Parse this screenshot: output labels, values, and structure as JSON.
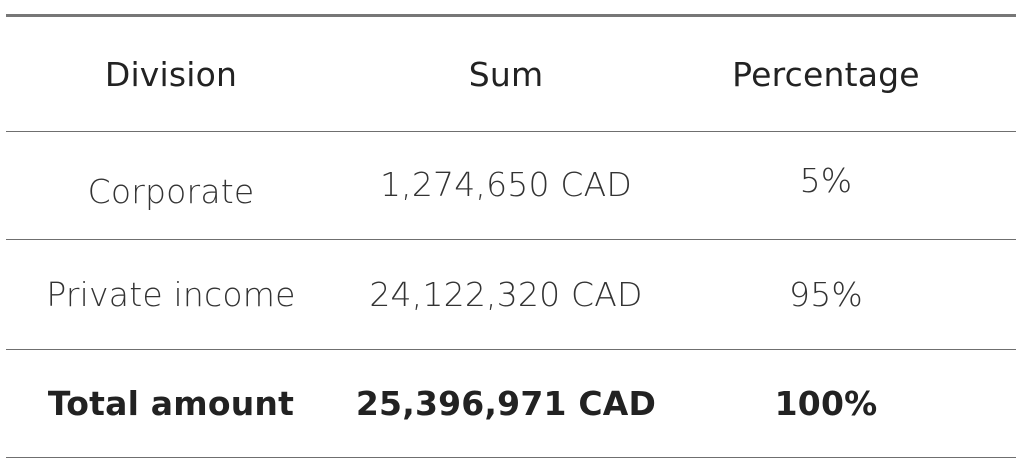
{
  "table": {
    "headers": [
      "Division",
      "Sum",
      "Percentage"
    ],
    "rows": [
      {
        "division": "Corporate",
        "sum": "1,274,650 CAD",
        "percentage": "5%"
      },
      {
        "division": "Private income",
        "sum": "24,122,320 CAD",
        "percentage": "95%"
      }
    ],
    "total": {
      "division": "Total amount",
      "sum": "25,396,971 CAD",
      "percentage": "100%"
    }
  }
}
